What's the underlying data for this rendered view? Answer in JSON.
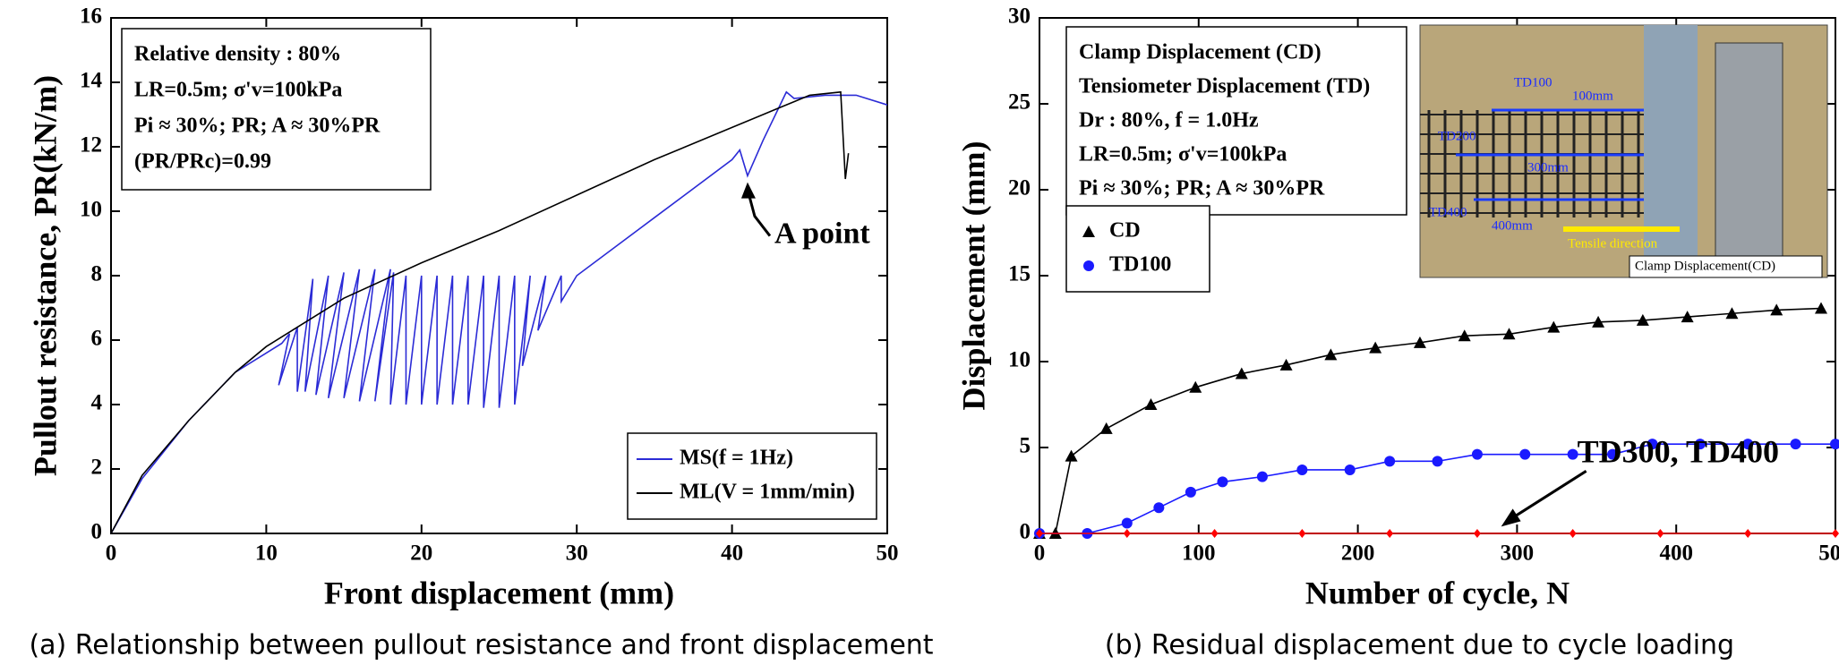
{
  "chart_data": [
    {
      "type": "line",
      "xlabel": "Front displacement (mm)",
      "ylabel": "Pullout resistance, PR(kN/m)",
      "caption": "(a) Relationship between pullout resistance and front displacement",
      "xlim": [
        0,
        50
      ],
      "xticks": [
        0,
        10,
        20,
        30,
        40,
        50
      ],
      "ylim": [
        0,
        16
      ],
      "yticks": [
        0,
        2,
        4,
        6,
        8,
        10,
        12,
        14,
        16
      ],
      "info": [
        "Relative density : 80%",
        "LR=0.5m; σ'v=100kPa",
        "Pi ≈ 30%; PR; A ≈ 30%PR",
        "(PR/PRc)=0.99"
      ],
      "annotation": "A point",
      "legend": "lower right",
      "series": [
        {
          "name": "MS(f = 1Hz)",
          "color": "#2b2bd6",
          "marker": "none",
          "x": [
            0,
            2,
            5,
            8,
            10,
            11,
            11.5,
            10.8,
            12,
            12,
            13,
            12.5,
            14,
            13.2,
            15,
            14,
            16,
            15,
            17,
            16,
            18,
            17,
            18.2,
            18,
            19,
            19,
            20,
            20,
            21,
            21,
            22,
            22,
            23,
            23,
            24,
            24,
            25,
            25,
            26,
            26,
            27,
            26.5,
            28,
            27.5,
            29,
            29,
            30,
            35,
            40,
            40.5,
            41,
            42,
            43.5,
            44,
            46,
            48,
            50
          ],
          "values": [
            0,
            1.7,
            3.5,
            5,
            5.6,
            5.9,
            6.2,
            4.6,
            6.4,
            4.4,
            7.9,
            4.4,
            8,
            4.3,
            8.1,
            4.2,
            8.2,
            4.2,
            8.2,
            4.1,
            8.2,
            4.1,
            8.1,
            4,
            8,
            4,
            8,
            4,
            8,
            4,
            8,
            4,
            8,
            4,
            8,
            3.9,
            8,
            3.9,
            8,
            4,
            8,
            5.2,
            8,
            6.3,
            8,
            7.2,
            8,
            9.8,
            11.6,
            11.9,
            11.1,
            12.2,
            13.7,
            13.5,
            13.6,
            13.6,
            13.3
          ]
        },
        {
          "name": "ML(V = 1mm/min)",
          "color": "#000000",
          "marker": "none",
          "x": [
            0,
            2,
            5,
            8,
            10,
            12,
            15,
            20,
            25,
            30,
            35,
            40,
            43,
            45,
            47,
            47.3,
            47.5
          ],
          "values": [
            0,
            1.8,
            3.5,
            5,
            5.8,
            6.4,
            7.3,
            8.4,
            9.4,
            10.5,
            11.6,
            12.6,
            13.2,
            13.6,
            13.7,
            11,
            11.8
          ]
        }
      ]
    },
    {
      "type": "line",
      "xlabel": "Number of cycle, N",
      "ylabel": "Displacement (mm)",
      "caption": "(b) Residual displacement due to cycle loading",
      "xlim": [
        0,
        500
      ],
      "xticks": [
        0,
        100,
        200,
        300,
        400,
        500
      ],
      "ylim": [
        0,
        30
      ],
      "yticks": [
        0,
        5,
        10,
        15,
        20,
        25,
        30
      ],
      "info": [
        "Clamp Displacement (CD)",
        "Tensiometer Displacement (TD)",
        "Dr : 80%, f = 1.0Hz",
        "LR=0.5m; σ'v=100kPa",
        "Pi ≈ 30%; PR; A ≈ 30%PR"
      ],
      "inset_labels": [
        "TD100",
        "100mm",
        "TD200",
        "300mm",
        "TD400",
        "400mm",
        "Tensile direction",
        "Clamp Displacement(CD)"
      ],
      "legend": "upper left",
      "series": [
        {
          "name": "CD",
          "color": "#000000",
          "marker": "triangle",
          "x": [
            0,
            10,
            20,
            42,
            70,
            98,
            127,
            155,
            183,
            211,
            239,
            267,
            295,
            323,
            351,
            379,
            407,
            435,
            463,
            491
          ],
          "values": [
            0,
            0,
            4.5,
            6.1,
            7.5,
            8.5,
            9.3,
            9.8,
            10.4,
            10.8,
            11.1,
            11.5,
            11.6,
            12.0,
            12.3,
            12.4,
            12.6,
            12.8,
            13.0,
            13.1
          ]
        },
        {
          "name": "TD100",
          "color": "#1a1aff",
          "marker": "circle",
          "x": [
            0,
            30,
            55,
            75,
            95,
            115,
            140,
            165,
            195,
            220,
            250,
            275,
            305,
            335,
            360,
            385,
            415,
            445,
            475,
            500
          ],
          "values": [
            0,
            0,
            0.6,
            1.5,
            2.4,
            3.0,
            3.3,
            3.7,
            3.7,
            4.2,
            4.2,
            4.6,
            4.6,
            4.6,
            4.6,
            5.2,
            5.2,
            5.2,
            5.2,
            5.2
          ]
        },
        {
          "name": "TD300, TD400",
          "color": "#ff0000",
          "marker": "diamond",
          "x": [
            0,
            55,
            110,
            165,
            220,
            275,
            335,
            390,
            445,
            500
          ],
          "values": [
            0,
            0,
            0,
            0,
            0,
            0,
            0,
            0,
            0,
            0
          ]
        }
      ]
    }
  ]
}
